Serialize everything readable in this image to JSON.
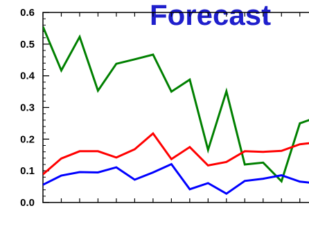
{
  "chart_data": {
    "type": "line",
    "title": "Forecast",
    "title_color": "#1f1fcc",
    "xlabel": "",
    "ylabel": "",
    "ylim": [
      0.0,
      0.6
    ],
    "yticks": [
      0.0,
      0.1,
      0.2,
      0.3,
      0.4,
      0.5,
      0.6
    ],
    "ytick_labels": [
      "0.0",
      "0.1",
      "0.2",
      "0.3",
      "0.4",
      "0.5",
      "0.6"
    ],
    "xlim": [
      0,
      14.5
    ],
    "x": [
      0,
      1,
      2,
      3,
      4,
      5,
      6,
      7,
      8,
      9,
      10,
      11,
      12,
      13,
      14,
      15
    ],
    "grid": false,
    "series": [
      {
        "color": "#008000",
        "values": [
          0.555,
          0.417,
          0.523,
          0.353,
          0.438,
          0.452,
          0.467,
          0.35,
          0.388,
          0.166,
          0.351,
          0.12,
          0.126,
          0.067,
          0.25,
          0.27
        ]
      },
      {
        "color": "#ff0000",
        "values": [
          0.089,
          0.139,
          0.162,
          0.162,
          0.142,
          0.168,
          0.218,
          0.137,
          0.175,
          0.117,
          0.128,
          0.162,
          0.16,
          0.163,
          0.184,
          0.19
        ]
      },
      {
        "color": "#0000ff",
        "values": [
          0.056,
          0.085,
          0.096,
          0.095,
          0.111,
          0.072,
          0.095,
          0.121,
          0.042,
          0.061,
          0.028,
          0.068,
          0.075,
          0.086,
          0.066,
          0.06
        ]
      }
    ]
  }
}
